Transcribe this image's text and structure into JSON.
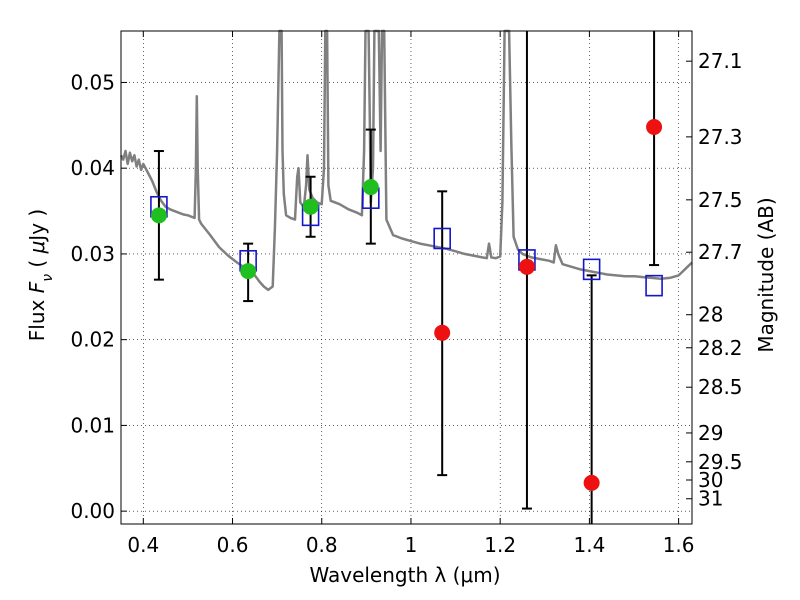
{
  "chart_data": {
    "type": "scatter",
    "xlabel": "Wavelength  λ (μm)",
    "ylabel": "Flux  F_ν  ( μJy )",
    "y2label": "Magnitude (AB)",
    "xlim": [
      0.35,
      1.63
    ],
    "ylim": [
      -0.0015,
      0.056
    ],
    "xticks": [
      0.4,
      0.6,
      0.8,
      1.0,
      1.2,
      1.4,
      1.6
    ],
    "xtick_labels": [
      "0.4",
      "0.6",
      "0.8",
      "1",
      "1.2",
      "1.4",
      "1.6"
    ],
    "yticks": [
      0.0,
      0.01,
      0.02,
      0.03,
      0.04,
      0.05
    ],
    "ytick_labels": [
      "0.00",
      "0.01",
      "0.02",
      "0.03",
      "0.04",
      "0.05"
    ],
    "magnitude_ticks": [
      27.1,
      27.3,
      27.5,
      27.7,
      28,
      28.2,
      28.5,
      29,
      29.5,
      30,
      31
    ],
    "magnitude_tick_labels": [
      "27.1",
      "27.3",
      "27.5",
      "27.7",
      "28",
      "28.2",
      "28.5",
      "29",
      "29.5",
      "30",
      "31"
    ],
    "grid": true,
    "colors": {
      "detections": "#1fbf1f",
      "low_significance": "#ee1111",
      "model_photometry": "#1515cc",
      "model_sed": "#808080",
      "errorbar": "#000000"
    },
    "series": [
      {
        "style": "green-circle",
        "points": [
          {
            "x": 0.435,
            "y": 0.0345,
            "ylo": 0.027,
            "yhi": 0.042
          },
          {
            "x": 0.635,
            "y": 0.028,
            "ylo": 0.0245,
            "yhi": 0.0312
          },
          {
            "x": 0.775,
            "y": 0.0355,
            "ylo": 0.032,
            "yhi": 0.039
          },
          {
            "x": 0.91,
            "y": 0.0378,
            "ylo": 0.0312,
            "yhi": 0.0445
          }
        ]
      },
      {
        "style": "red-circle",
        "points": [
          {
            "x": 1.07,
            "y": 0.0208,
            "ylo": 0.0042,
            "yhi": 0.0373
          },
          {
            "x": 1.26,
            "y": 0.0285,
            "ylo": 0.0003,
            "yhi": 0.056
          },
          {
            "x": 1.405,
            "y": 0.0033,
            "ylo": -0.0015,
            "yhi": 0.0275
          },
          {
            "x": 1.545,
            "y": 0.0448,
            "ylo": 0.0287,
            "yhi": 0.056
          }
        ]
      },
      {
        "style": "blue-open-square",
        "points": [
          {
            "x": 0.435,
            "y": 0.0355
          },
          {
            "x": 0.635,
            "y": 0.0292
          },
          {
            "x": 0.775,
            "y": 0.0345
          },
          {
            "x": 0.91,
            "y": 0.0365
          },
          {
            "x": 1.07,
            "y": 0.0318
          },
          {
            "x": 1.26,
            "y": 0.0293
          },
          {
            "x": 1.405,
            "y": 0.0282
          },
          {
            "x": 1.545,
            "y": 0.0263
          }
        ]
      },
      {
        "style": "grey-line",
        "points": [
          [
            0.35,
            0.0415
          ],
          [
            0.355,
            0.041
          ],
          [
            0.36,
            0.042
          ],
          [
            0.365,
            0.0405
          ],
          [
            0.37,
            0.0418
          ],
          [
            0.375,
            0.0408
          ],
          [
            0.38,
            0.0415
          ],
          [
            0.385,
            0.0402
          ],
          [
            0.39,
            0.041
          ],
          [
            0.395,
            0.0398
          ],
          [
            0.4,
            0.0405
          ],
          [
            0.41,
            0.0395
          ],
          [
            0.42,
            0.0385
          ],
          [
            0.43,
            0.0372
          ],
          [
            0.44,
            0.0362
          ],
          [
            0.45,
            0.0355
          ],
          [
            0.46,
            0.0352
          ],
          [
            0.47,
            0.035
          ],
          [
            0.48,
            0.0348
          ],
          [
            0.49,
            0.0346
          ],
          [
            0.5,
            0.0345
          ],
          [
            0.51,
            0.0343
          ],
          [
            0.515,
            0.0342
          ],
          [
            0.518,
            0.04
          ],
          [
            0.52,
            0.0484
          ],
          [
            0.522,
            0.04
          ],
          [
            0.525,
            0.034
          ],
          [
            0.53,
            0.0335
          ],
          [
            0.55,
            0.0322
          ],
          [
            0.57,
            0.0308
          ],
          [
            0.59,
            0.0298
          ],
          [
            0.61,
            0.029
          ],
          [
            0.63,
            0.0283
          ],
          [
            0.65,
            0.0275
          ],
          [
            0.66,
            0.0268
          ],
          [
            0.67,
            0.0262
          ],
          [
            0.68,
            0.0258
          ],
          [
            0.69,
            0.0262
          ],
          [
            0.695,
            0.033
          ],
          [
            0.7,
            0.042
          ],
          [
            0.705,
            0.056
          ],
          [
            0.71,
            0.056
          ],
          [
            0.712,
            0.042
          ],
          [
            0.715,
            0.037
          ],
          [
            0.72,
            0.0345
          ],
          [
            0.73,
            0.0342
          ],
          [
            0.74,
            0.034
          ],
          [
            0.745,
            0.039
          ],
          [
            0.748,
            0.04
          ],
          [
            0.752,
            0.036
          ],
          [
            0.76,
            0.0355
          ],
          [
            0.765,
            0.038
          ],
          [
            0.768,
            0.0415
          ],
          [
            0.772,
            0.0375
          ],
          [
            0.78,
            0.0365
          ],
          [
            0.79,
            0.036
          ],
          [
            0.8,
            0.0358
          ],
          [
            0.805,
            0.04
          ],
          [
            0.808,
            0.056
          ],
          [
            0.812,
            0.056
          ],
          [
            0.815,
            0.038
          ],
          [
            0.82,
            0.0362
          ],
          [
            0.84,
            0.0358
          ],
          [
            0.86,
            0.0352
          ],
          [
            0.88,
            0.0348
          ],
          [
            0.89,
            0.0345
          ],
          [
            0.895,
            0.042
          ],
          [
            0.898,
            0.056
          ],
          [
            0.905,
            0.056
          ],
          [
            0.908,
            0.045
          ],
          [
            0.91,
            0.036
          ],
          [
            0.915,
            0.04
          ],
          [
            0.918,
            0.056
          ],
          [
            0.928,
            0.056
          ],
          [
            0.932,
            0.042
          ],
          [
            0.935,
            0.056
          ],
          [
            0.94,
            0.056
          ],
          [
            0.945,
            0.034
          ],
          [
            0.96,
            0.0322
          ],
          [
            0.98,
            0.0318
          ],
          [
            1.0,
            0.0315
          ],
          [
            1.02,
            0.0312
          ],
          [
            1.04,
            0.031
          ],
          [
            1.06,
            0.0308
          ],
          [
            1.08,
            0.0306
          ],
          [
            1.1,
            0.0303
          ],
          [
            1.12,
            0.03
          ],
          [
            1.14,
            0.0298
          ],
          [
            1.16,
            0.0296
          ],
          [
            1.17,
            0.0295
          ],
          [
            1.175,
            0.0312
          ],
          [
            1.18,
            0.0296
          ],
          [
            1.19,
            0.0295
          ],
          [
            1.2,
            0.0297
          ],
          [
            1.205,
            0.036
          ],
          [
            1.21,
            0.056
          ],
          [
            1.22,
            0.056
          ],
          [
            1.225,
            0.043
          ],
          [
            1.23,
            0.032
          ],
          [
            1.24,
            0.0305
          ],
          [
            1.25,
            0.03
          ],
          [
            1.27,
            0.0296
          ],
          [
            1.29,
            0.0294
          ],
          [
            1.31,
            0.0292
          ],
          [
            1.32,
            0.029
          ],
          [
            1.325,
            0.031
          ],
          [
            1.33,
            0.03
          ],
          [
            1.34,
            0.0288
          ],
          [
            1.36,
            0.0285
          ],
          [
            1.38,
            0.0282
          ],
          [
            1.4,
            0.028
          ],
          [
            1.42,
            0.0278
          ],
          [
            1.44,
            0.0276
          ],
          [
            1.46,
            0.0275
          ],
          [
            1.48,
            0.0274
          ],
          [
            1.5,
            0.0274
          ],
          [
            1.52,
            0.0273
          ],
          [
            1.54,
            0.0272
          ],
          [
            1.56,
            0.0271
          ],
          [
            1.58,
            0.0272
          ],
          [
            1.6,
            0.0275
          ],
          [
            1.61,
            0.028
          ],
          [
            1.62,
            0.0285
          ],
          [
            1.63,
            0.029
          ]
        ]
      }
    ]
  }
}
